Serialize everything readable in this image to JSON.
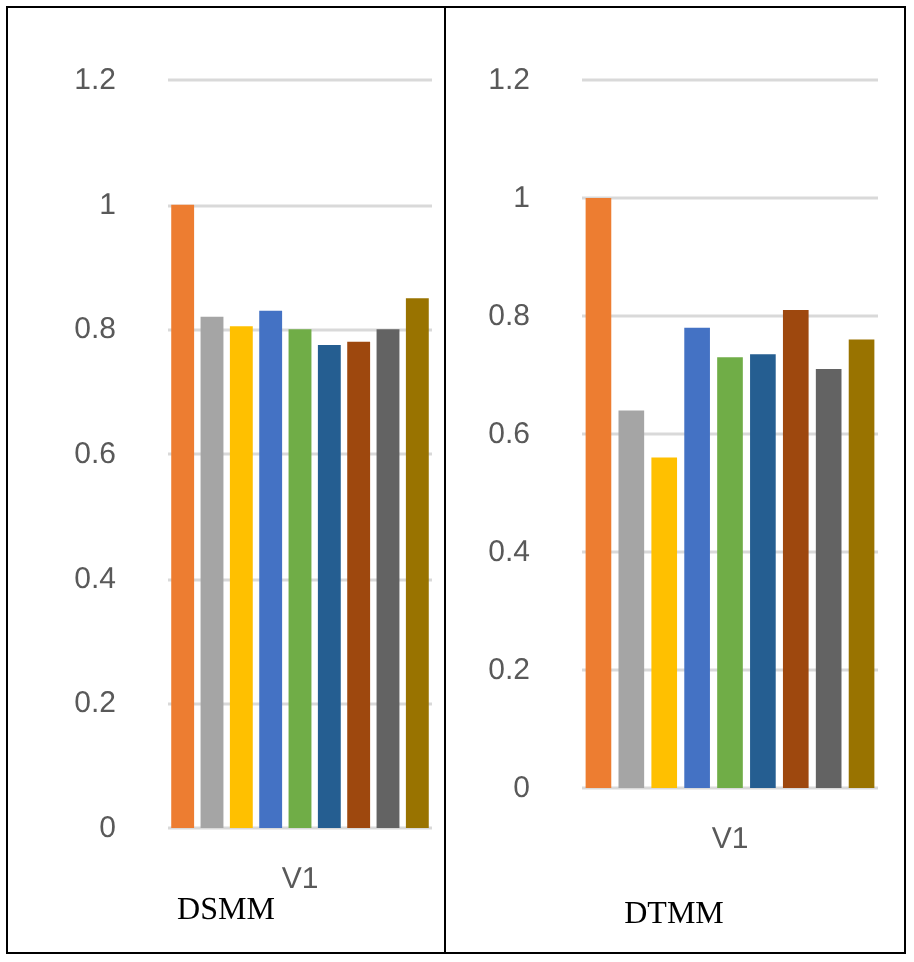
{
  "chart_data": [
    {
      "type": "bar",
      "title": "DSMM",
      "xlabel": "V1",
      "categories": [
        null,
        null,
        null,
        null,
        null,
        null,
        null,
        null,
        null
      ],
      "ylim": [
        0,
        1.2
      ],
      "yticks": [
        0,
        0.2,
        0.4,
        0.6,
        0.8,
        1,
        1.2
      ],
      "grid": "y",
      "values": [
        1.0,
        0.82,
        0.805,
        0.83,
        0.8,
        0.775,
        0.78,
        0.8,
        0.85
      ],
      "colors": [
        "#ed7d31",
        "#a5a5a5",
        "#ffc000",
        "#4472c4",
        "#70ad47",
        "#255e91",
        "#9e480e",
        "#636363",
        "#997300"
      ]
    },
    {
      "type": "bar",
      "title": "DTMM",
      "xlabel": "V1",
      "categories": [
        null,
        null,
        null,
        null,
        null,
        null,
        null,
        null,
        null
      ],
      "ylim": [
        0,
        1.2
      ],
      "yticks": [
        0,
        0.2,
        0.4,
        0.6,
        0.8,
        1,
        1.2
      ],
      "grid": "y",
      "values": [
        1.0,
        0.64,
        0.56,
        0.78,
        0.73,
        0.735,
        0.81,
        0.71,
        0.76
      ],
      "colors": [
        "#ed7d31",
        "#a5a5a5",
        "#ffc000",
        "#4472c4",
        "#70ad47",
        "#255e91",
        "#9e480e",
        "#636363",
        "#997300"
      ]
    }
  ]
}
